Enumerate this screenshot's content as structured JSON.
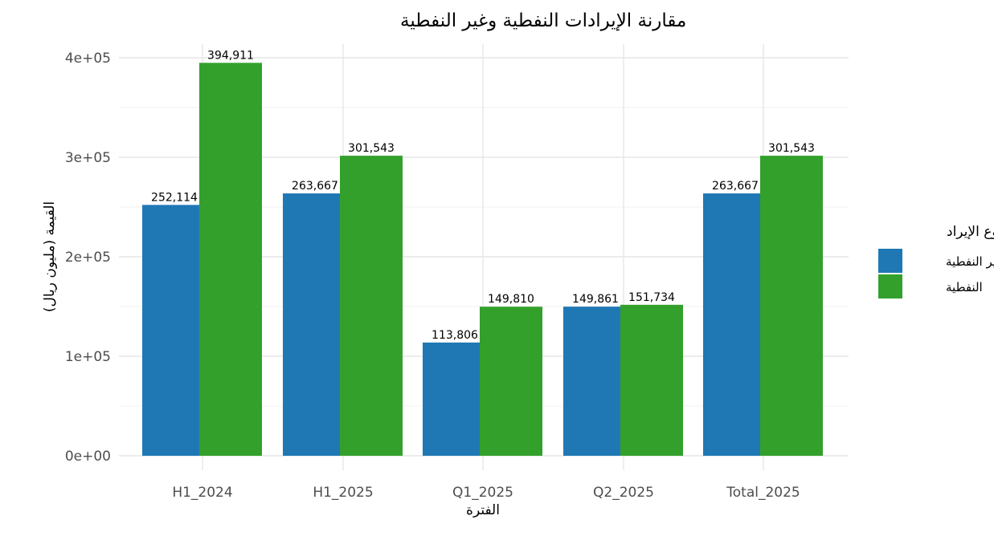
{
  "chart_data": {
    "type": "bar",
    "title": "مقارنة الإيرادات النفطية وغير النفطية",
    "xlabel": "الفترة",
    "ylabel": "القيمة (مليون ريال)",
    "categories": [
      "H1_2024",
      "H1_2025",
      "Q1_2025",
      "Q2_2025",
      "Total_2025"
    ],
    "series": [
      {
        "name": "غير النفطية",
        "color": "#1f78b4",
        "values": [
          252114,
          263667,
          113806,
          149861,
          263667
        ]
      },
      {
        "name": "النفطية",
        "color": "#33a02c",
        "values": [
          394911,
          301543,
          149810,
          151734,
          301543
        ]
      }
    ],
    "value_labels": [
      [
        "252,114",
        "263,667",
        "113,806",
        "149,861",
        "263,667"
      ],
      [
        "394,911",
        "301,543",
        "149,810",
        "151,734",
        "301,543"
      ]
    ],
    "ylim": [
      0,
      400000
    ],
    "y_ticks": [
      0,
      100000,
      200000,
      300000,
      400000
    ],
    "y_tick_labels": [
      "0e+00",
      "1e+05",
      "2e+05",
      "3e+05",
      "4e+05"
    ],
    "legend": {
      "title": "نوع الإيراد",
      "position": "right"
    },
    "grid": true
  }
}
